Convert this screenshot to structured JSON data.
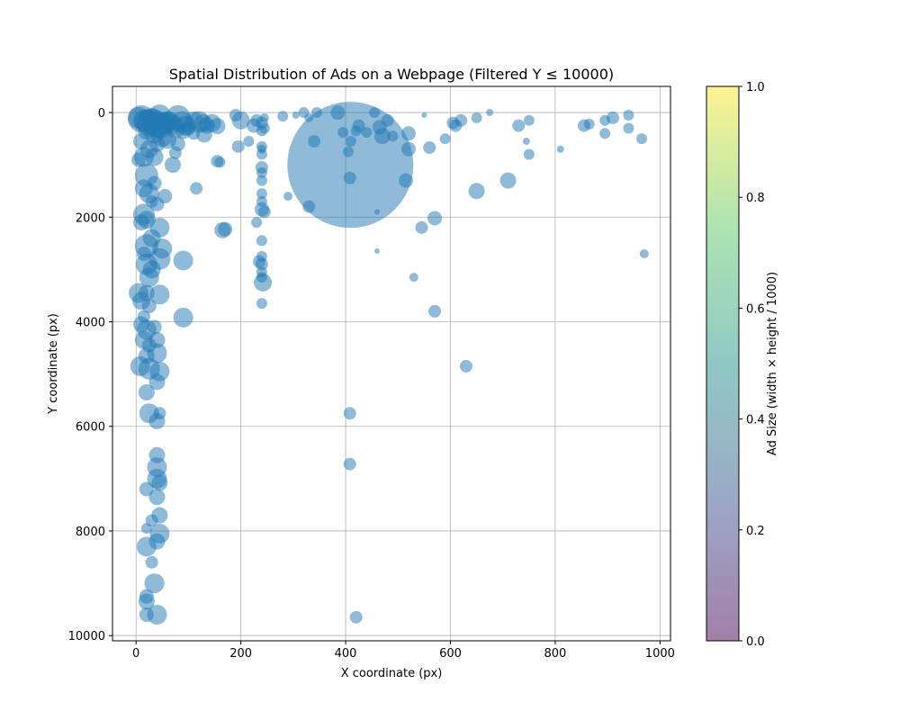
{
  "chart_data": {
    "type": "scatter",
    "title": "Spatial Distribution of Ads on a Webpage (Filtered Y ≤ 10000)",
    "xlabel": "X coordinate (px)",
    "ylabel": "Y coordinate (px)",
    "xlim": [
      -45,
      1020
    ],
    "ylim": [
      10100,
      -500
    ],
    "y_inverted": true,
    "grid": true,
    "xticks": [
      0,
      200,
      400,
      600,
      800,
      1000
    ],
    "yticks": [
      0,
      2000,
      4000,
      6000,
      8000,
      10000
    ],
    "marker_color": "#1f77b4",
    "marker_alpha": 0.5,
    "size_note": "marker size proportional to ad size (width × height / 1000)",
    "colorbar": {
      "label": "Ad Size (width × height / 1000)",
      "ticks": [
        "0.0",
        "0.2",
        "0.4",
        "0.6",
        "0.8",
        "1.0"
      ],
      "colormap": "viridis",
      "alpha": 0.5
    },
    "points": [
      [
        409,
        1000,
        70
      ],
      [
        5,
        100,
        12
      ],
      [
        10,
        120,
        15
      ],
      [
        15,
        150,
        12
      ],
      [
        22,
        180,
        14
      ],
      [
        30,
        200,
        16
      ],
      [
        40,
        220,
        15
      ],
      [
        48,
        250,
        14
      ],
      [
        55,
        200,
        12
      ],
      [
        62,
        180,
        12
      ],
      [
        70,
        220,
        11
      ],
      [
        80,
        100,
        14
      ],
      [
        88,
        180,
        12
      ],
      [
        95,
        250,
        11
      ],
      [
        110,
        150,
        10
      ],
      [
        120,
        180,
        12
      ],
      [
        128,
        200,
        10
      ],
      [
        135,
        250,
        9
      ],
      [
        145,
        200,
        10
      ],
      [
        155,
        260,
        9
      ],
      [
        30,
        100,
        11
      ],
      [
        45,
        50,
        12
      ],
      [
        60,
        150,
        10
      ],
      [
        75,
        300,
        11
      ],
      [
        90,
        350,
        9
      ],
      [
        100,
        300,
        8
      ],
      [
        110,
        400,
        7
      ],
      [
        130,
        420,
        9
      ],
      [
        20,
        350,
        10
      ],
      [
        35,
        400,
        11
      ],
      [
        50,
        450,
        12
      ],
      [
        60,
        520,
        10
      ],
      [
        80,
        600,
        8
      ],
      [
        10,
        550,
        9
      ],
      [
        25,
        700,
        10
      ],
      [
        40,
        600,
        9
      ],
      [
        15,
        850,
        11
      ],
      [
        35,
        850,
        10
      ],
      [
        5,
        900,
        8
      ],
      [
        70,
        1000,
        9
      ],
      [
        20,
        1200,
        13
      ],
      [
        35,
        1350,
        8
      ],
      [
        15,
        1450,
        10
      ],
      [
        25,
        1550,
        11
      ],
      [
        55,
        1600,
        8
      ],
      [
        30,
        1700,
        7
      ],
      [
        40,
        1750,
        8
      ],
      [
        15,
        1950,
        12
      ],
      [
        20,
        2050,
        10
      ],
      [
        10,
        2100,
        9
      ],
      [
        45,
        2200,
        11
      ],
      [
        30,
        2400,
        10
      ],
      [
        20,
        2550,
        13
      ],
      [
        50,
        2600,
        11
      ],
      [
        15,
        2700,
        8
      ],
      [
        45,
        2800,
        12
      ],
      [
        20,
        2900,
        12
      ],
      [
        30,
        3000,
        10
      ],
      [
        90,
        2830,
        11
      ],
      [
        25,
        3150,
        11
      ],
      [
        5,
        3450,
        11
      ],
      [
        20,
        3450,
        9
      ],
      [
        45,
        3480,
        11
      ],
      [
        10,
        3600,
        10
      ],
      [
        25,
        3700,
        8
      ],
      [
        15,
        3900,
        7
      ],
      [
        90,
        3920,
        11
      ],
      [
        10,
        4050,
        9
      ],
      [
        20,
        4150,
        11
      ],
      [
        35,
        4100,
        8
      ],
      [
        15,
        4350,
        10
      ],
      [
        40,
        4350,
        9
      ],
      [
        25,
        4450,
        8
      ],
      [
        40,
        4600,
        11
      ],
      [
        20,
        4650,
        9
      ],
      [
        8,
        4850,
        11
      ],
      [
        25,
        4900,
        12
      ],
      [
        45,
        4950,
        11
      ],
      [
        40,
        5150,
        9
      ],
      [
        20,
        5350,
        9
      ],
      [
        25,
        5750,
        11
      ],
      [
        45,
        5750,
        7
      ],
      [
        40,
        5900,
        9
      ],
      [
        40,
        6550,
        9
      ],
      [
        40,
        6780,
        11
      ],
      [
        40,
        7000,
        11
      ],
      [
        45,
        7080,
        9
      ],
      [
        20,
        7200,
        8
      ],
      [
        40,
        7350,
        9
      ],
      [
        45,
        7700,
        9
      ],
      [
        20,
        7950,
        6
      ],
      [
        30,
        7800,
        7
      ],
      [
        45,
        8050,
        11
      ],
      [
        40,
        8200,
        9
      ],
      [
        20,
        8300,
        11
      ],
      [
        30,
        8600,
        7
      ],
      [
        35,
        9000,
        11
      ],
      [
        20,
        9250,
        8
      ],
      [
        20,
        9350,
        9
      ],
      [
        20,
        9600,
        8
      ],
      [
        40,
        9600,
        11
      ],
      [
        75,
        770,
        7
      ],
      [
        115,
        1450,
        7
      ],
      [
        155,
        930,
        7
      ],
      [
        160,
        950,
        6
      ],
      [
        165,
        2250,
        9
      ],
      [
        170,
        2230,
        8
      ],
      [
        190,
        50,
        7
      ],
      [
        195,
        650,
        7
      ],
      [
        200,
        150,
        10
      ],
      [
        215,
        550,
        6
      ],
      [
        225,
        250,
        8
      ],
      [
        230,
        150,
        7
      ],
      [
        230,
        2100,
        6
      ],
      [
        235,
        2850,
        7
      ],
      [
        240,
        200,
        7
      ],
      [
        240,
        350,
        6
      ],
      [
        240,
        650,
        6
      ],
      [
        240,
        700,
        5
      ],
      [
        240,
        800,
        6
      ],
      [
        240,
        1050,
        7
      ],
      [
        240,
        1150,
        6
      ],
      [
        240,
        1300,
        6
      ],
      [
        240,
        1550,
        6
      ],
      [
        240,
        1700,
        6
      ],
      [
        240,
        1850,
        8
      ],
      [
        245,
        1900,
        7
      ],
      [
        240,
        2450,
        6
      ],
      [
        240,
        2750,
        6
      ],
      [
        240,
        2900,
        7
      ],
      [
        240,
        3050,
        6
      ],
      [
        240,
        3150,
        6
      ],
      [
        242,
        3250,
        10
      ],
      [
        240,
        3650,
        6
      ],
      [
        245,
        300,
        6
      ],
      [
        245,
        100,
        5
      ],
      [
        280,
        70,
        6
      ],
      [
        290,
        1600,
        5
      ],
      [
        305,
        50,
        4
      ],
      [
        320,
        0,
        6
      ],
      [
        330,
        100,
        5
      ],
      [
        340,
        550,
        7
      ],
      [
        330,
        1800,
        7
      ],
      [
        345,
        0,
        6
      ],
      [
        385,
        0,
        8
      ],
      [
        395,
        380,
        6
      ],
      [
        405,
        750,
        6
      ],
      [
        410,
        550,
        6
      ],
      [
        420,
        350,
        6
      ],
      [
        425,
        250,
        7
      ],
      [
        440,
        380,
        6
      ],
      [
        465,
        280,
        8
      ],
      [
        470,
        450,
        9
      ],
      [
        480,
        150,
        7
      ],
      [
        490,
        450,
        6
      ],
      [
        460,
        1900,
        3
      ],
      [
        460,
        2650,
        3
      ],
      [
        408,
        1250,
        7
      ],
      [
        408,
        5750,
        7
      ],
      [
        408,
        6720,
        7
      ],
      [
        420,
        9650,
        7
      ],
      [
        455,
        0,
        6
      ],
      [
        520,
        400,
        8
      ],
      [
        515,
        1300,
        8
      ],
      [
        520,
        700,
        8
      ],
      [
        530,
        3150,
        5
      ],
      [
        545,
        2200,
        7
      ],
      [
        550,
        50,
        3
      ],
      [
        560,
        670,
        7
      ],
      [
        570,
        2020,
        8
      ],
      [
        570,
        3800,
        7
      ],
      [
        590,
        500,
        6
      ],
      [
        605,
        200,
        7
      ],
      [
        610,
        250,
        7
      ],
      [
        620,
        150,
        7
      ],
      [
        630,
        4850,
        7
      ],
      [
        650,
        1500,
        9
      ],
      [
        650,
        100,
        6
      ],
      [
        675,
        0,
        4
      ],
      [
        710,
        1300,
        9
      ],
      [
        730,
        250,
        7
      ],
      [
        745,
        550,
        4
      ],
      [
        750,
        150,
        6
      ],
      [
        750,
        800,
        6
      ],
      [
        810,
        700,
        4
      ],
      [
        855,
        250,
        7
      ],
      [
        865,
        220,
        6
      ],
      [
        895,
        150,
        6
      ],
      [
        895,
        400,
        6
      ],
      [
        910,
        100,
        7
      ],
      [
        940,
        50,
        6
      ],
      [
        940,
        300,
        6
      ],
      [
        965,
        500,
        6
      ],
      [
        970,
        2700,
        5
      ]
    ]
  }
}
